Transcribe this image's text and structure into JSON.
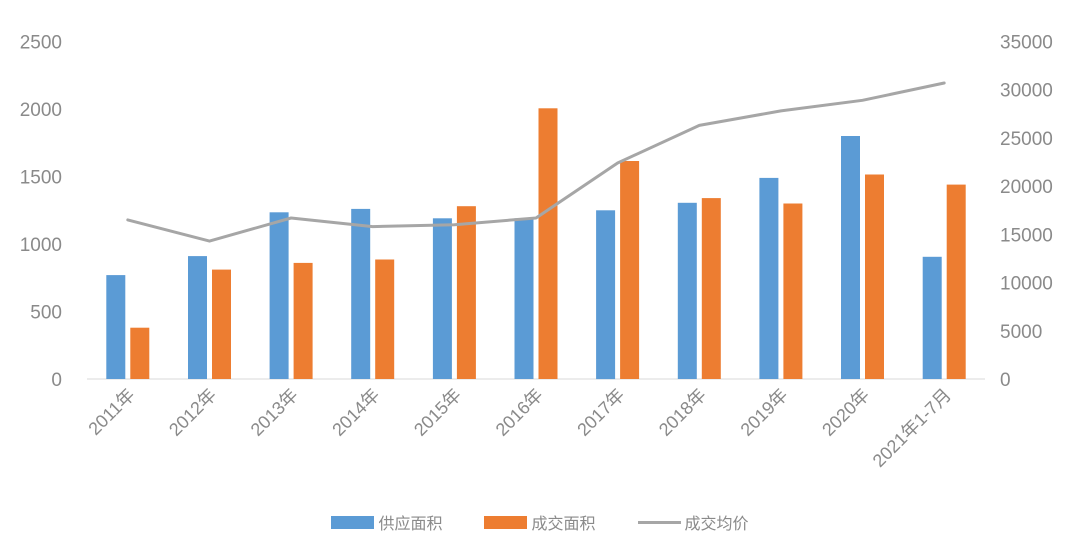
{
  "chart_data": {
    "type": "combo-bar-line",
    "categories": [
      "2011年",
      "2012年",
      "2013年",
      "2014年",
      "2015年",
      "2016年",
      "2017年",
      "2018年",
      "2019年",
      "2020年",
      "2021年1-7月"
    ],
    "series": [
      {
        "name": "供应面积",
        "type": "bar",
        "axis": "left",
        "color": "#5B9BD5",
        "values": [
          770,
          910,
          1235,
          1260,
          1190,
          1190,
          1250,
          1305,
          1490,
          1800,
          905
        ]
      },
      {
        "name": "成交面积",
        "type": "bar",
        "axis": "left",
        "color": "#ED7D31",
        "values": [
          380,
          810,
          860,
          885,
          1280,
          2005,
          1615,
          1340,
          1300,
          1515,
          1440
        ]
      },
      {
        "name": "成交均价",
        "type": "line",
        "axis": "right",
        "color": "#A6A6A6",
        "values": [
          16500,
          14300,
          16700,
          15800,
          16000,
          16700,
          22400,
          26300,
          27800,
          28900,
          30700
        ]
      }
    ],
    "left_axis": {
      "min": 0,
      "max": 2500,
      "step": 500,
      "ticks": [
        0,
        500,
        1000,
        1500,
        2000,
        2500
      ]
    },
    "right_axis": {
      "min": 0,
      "max": 35000,
      "step": 5000,
      "ticks": [
        0,
        5000,
        10000,
        15000,
        20000,
        25000,
        30000,
        35000
      ]
    },
    "grid": false,
    "title": "",
    "legend_position": "bottom",
    "axis_line_color": "#D9D9D9",
    "axis_text_color": "#8A8A8A",
    "background": "#FFFFFF"
  }
}
